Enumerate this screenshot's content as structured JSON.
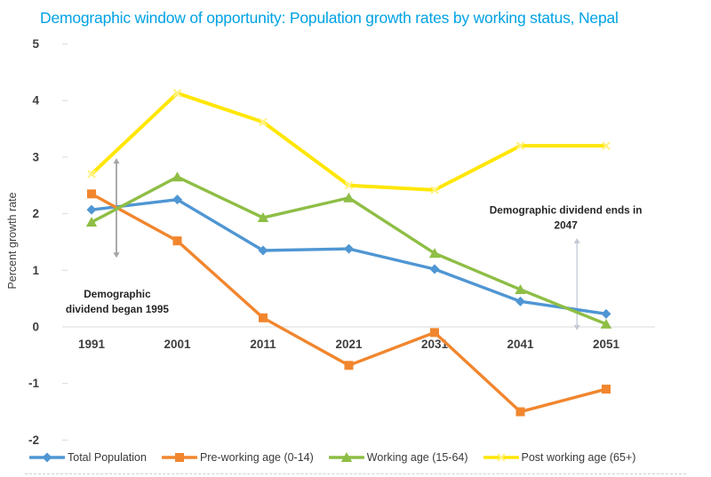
{
  "title": {
    "text": "Demographic window of opportunity: Population growth rates by working status, Nepal",
    "color": "#00A2E4"
  },
  "chart_data": {
    "type": "line",
    "title": "Demographic window of opportunity: Population growth rates by working status, Nepal",
    "xlabel": "",
    "ylabel": "Percent growth rate",
    "ylim": [
      -2,
      5
    ],
    "grid": false,
    "legend_position": "bottom",
    "x": [
      1991,
      2001,
      2011,
      2021,
      2031,
      2041,
      2051
    ],
    "x_tick_labels": [
      "1991",
      "2001",
      "2011",
      "2021",
      "2031",
      "2041",
      "2051"
    ],
    "y_ticks": [
      5,
      4,
      3,
      2,
      1,
      0,
      -1,
      -2
    ],
    "series": [
      {
        "name": "Total Population",
        "color": "#4F96D3",
        "marker": "diamond",
        "values": [
          2.07,
          2.25,
          1.35,
          1.38,
          1.02,
          0.45,
          0.23
        ]
      },
      {
        "name": "Pre-working age (0-14)",
        "color": "#F1862E",
        "marker": "square",
        "values": [
          2.35,
          1.52,
          0.16,
          -0.68,
          -0.1,
          -1.5,
          -1.1
        ]
      },
      {
        "name": "Working age (15-64)",
        "color": "#8EBE45",
        "marker": "triangle",
        "values": [
          1.85,
          2.65,
          1.93,
          2.28,
          1.3,
          0.66,
          0.05
        ]
      },
      {
        "name": "Post working age (65+)",
        "color": "#FFE604",
        "marker": "x",
        "values": [
          2.7,
          4.13,
          3.62,
          2.5,
          2.42,
          3.2,
          3.2
        ]
      }
    ],
    "annotations": [
      {
        "id": "dividend-began",
        "lines": [
          "Demographic",
          "dividend began 1995"
        ],
        "year": 1994.0,
        "value": 0.45,
        "arrow": {
          "year": 1993.9,
          "from_value": 2.98,
          "to_value": 1.22,
          "style": "solid",
          "color": "#A6A6A6"
        }
      },
      {
        "id": "dividend-ends",
        "lines": [
          "Demographic dividend ends in",
          "2047"
        ],
        "year": 2046.3,
        "value": 1.93,
        "arrow": {
          "year": 2047.6,
          "from_value": 1.57,
          "to_value": -0.06,
          "style": "faint",
          "color": "#C3CBD5"
        }
      }
    ]
  },
  "colors": {
    "axis_line": "#D9D9D9",
    "tick_text": "#3f3f3f",
    "annotation_text": "#262626"
  }
}
